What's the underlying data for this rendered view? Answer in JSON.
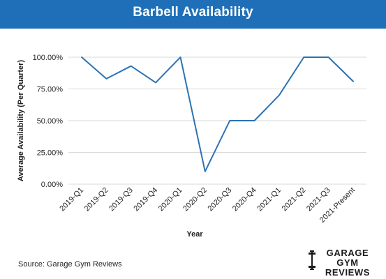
{
  "header": {
    "title": "Barbell Availability"
  },
  "source_text": "Source: Garage Gym Reviews",
  "logo": {
    "line1": "GARAGE GYM",
    "line2": "REVIEWS",
    "icon": "barbell-icon"
  },
  "colors": {
    "header_bg": "#1f6fb8",
    "line": "#2b72b4",
    "grid": "#d9d9d9"
  },
  "chart_data": {
    "type": "line",
    "categories": [
      "2019-Q1",
      "2019-Q2",
      "2019-Q3",
      "2019-Q4",
      "2020-Q1",
      "2020-Q2",
      "2020-Q3",
      "2020-Q4",
      "2021-Q1",
      "2021-Q2",
      "2021-Q3",
      "2021-Present"
    ],
    "series": [
      {
        "values": [
          100,
          83,
          93,
          80,
          100,
          10,
          50,
          50,
          70,
          100,
          100,
          81
        ]
      }
    ],
    "xlabel": "Year",
    "ylabel": "Average Availability (Per Quarter)",
    "ylim": [
      0,
      100
    ],
    "yticks": [
      "0.00%",
      "25.00%",
      "50.00%",
      "75.00%",
      "100.00%"
    ],
    "grid": true
  }
}
